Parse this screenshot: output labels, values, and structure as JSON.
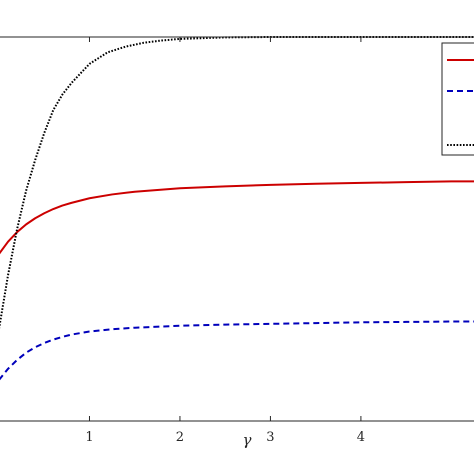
{
  "chart_data": {
    "type": "line",
    "xlabel": "γ",
    "ylabel": "",
    "xlim": [
      0,
      5.25
    ],
    "ylim": [
      0,
      1
    ],
    "xticks": [
      1,
      2,
      3,
      4
    ],
    "xtick_labels": [
      "1",
      "2",
      "3",
      "4"
    ],
    "grid": false,
    "legend_position": "top-right",
    "series": [
      {
        "color": "#cc0000",
        "dash": "solid",
        "x": [
          0,
          0.1,
          0.2,
          0.3,
          0.4,
          0.5,
          0.6,
          0.7,
          0.8,
          1.0,
          1.25,
          1.5,
          2.0,
          2.5,
          3.0,
          3.5,
          4.0,
          4.5,
          5.0,
          5.25
        ],
        "values": [
          0.435,
          0.467,
          0.492,
          0.512,
          0.528,
          0.541,
          0.552,
          0.561,
          0.568,
          0.58,
          0.59,
          0.597,
          0.606,
          0.611,
          0.615,
          0.618,
          0.62,
          0.622,
          0.624,
          0.624
        ]
      },
      {
        "color": "#0000bb",
        "dash": "dashed",
        "x": [
          0,
          0.1,
          0.2,
          0.3,
          0.4,
          0.5,
          0.6,
          0.7,
          0.8,
          1.0,
          1.25,
          1.5,
          2.0,
          2.5,
          3.0,
          3.5,
          4.0,
          4.5,
          5.0,
          5.25
        ],
        "values": [
          0.107,
          0.136,
          0.159,
          0.178,
          0.192,
          0.203,
          0.212,
          0.219,
          0.225,
          0.233,
          0.239,
          0.243,
          0.248,
          0.251,
          0.253,
          0.255,
          0.257,
          0.258,
          0.259,
          0.259
        ]
      },
      {
        "color": "#000000",
        "dash": "dotted",
        "x": [
          0,
          0.1,
          0.2,
          0.3,
          0.4,
          0.5,
          0.6,
          0.7,
          0.8,
          1.0,
          1.2,
          1.4,
          1.6,
          1.8,
          2.0,
          2.5,
          3.0,
          4.0,
          5.25
        ],
        "values": [
          0.24,
          0.38,
          0.5,
          0.6,
          0.68,
          0.75,
          0.81,
          0.85,
          0.88,
          0.93,
          0.96,
          0.975,
          0.985,
          0.991,
          0.995,
          0.999,
          1.0,
          1.0,
          1.0
        ]
      }
    ]
  }
}
